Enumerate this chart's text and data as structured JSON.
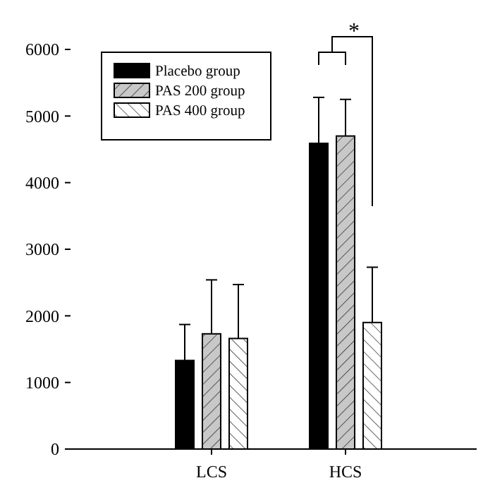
{
  "chart_data": {
    "type": "bar",
    "categories": [
      "LCS",
      "HCS"
    ],
    "series": [
      {
        "name": "Placebo group",
        "color": "#000000",
        "values": [
          1330,
          4590
        ],
        "errors": [
          [
            1330,
            1870
          ],
          [
            4590,
            5280
          ]
        ]
      },
      {
        "name": "PAS 200 group",
        "color": "#c8c8c8",
        "values": [
          1730,
          4700
        ],
        "errors": [
          [
            1730,
            2540
          ],
          [
            4700,
            5250
          ]
        ]
      },
      {
        "name": "PAS 400 group",
        "color": "#ffffff",
        "values": [
          1660,
          1900
        ],
        "errors": [
          [
            1660,
            2470
          ],
          [
            1900,
            2730
          ]
        ]
      }
    ],
    "ylim": [
      0,
      6000
    ],
    "yticks": [
      0,
      1000,
      2000,
      3000,
      4000,
      5000,
      6000
    ],
    "legend": "top left",
    "grid": false,
    "annotations": [
      "*"
    ]
  }
}
